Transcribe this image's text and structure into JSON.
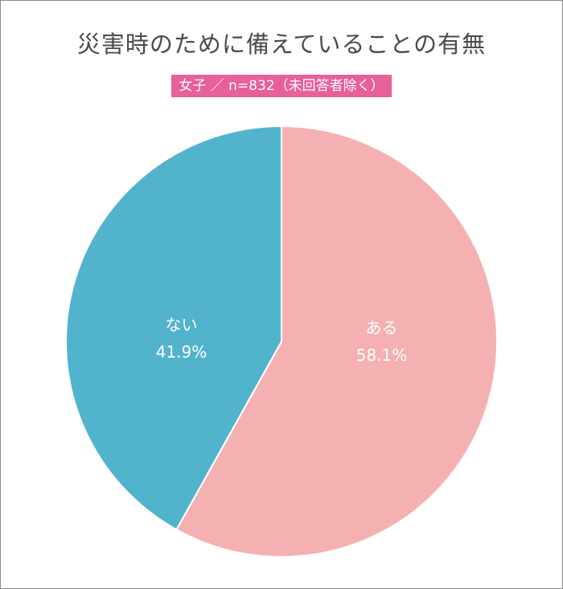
{
  "chart_data": {
    "type": "pie",
    "title": "災害時のために備えていることの有無",
    "subtitle": "女子 ／ n=832（未回答者除く）",
    "slices": [
      {
        "label": "ある",
        "value": 58.1,
        "value_label": "58.1%",
        "color": "#f5b1b2"
      },
      {
        "label": "ない",
        "value": 41.9,
        "value_label": "41.9%",
        "color": "#52b3cd"
      }
    ],
    "start_angle": "12 o'clock",
    "direction": "clockwise"
  },
  "colors": {
    "accent": "#e8609a",
    "title_text": "#4a4a4a",
    "border": "#8a8a8a"
  }
}
